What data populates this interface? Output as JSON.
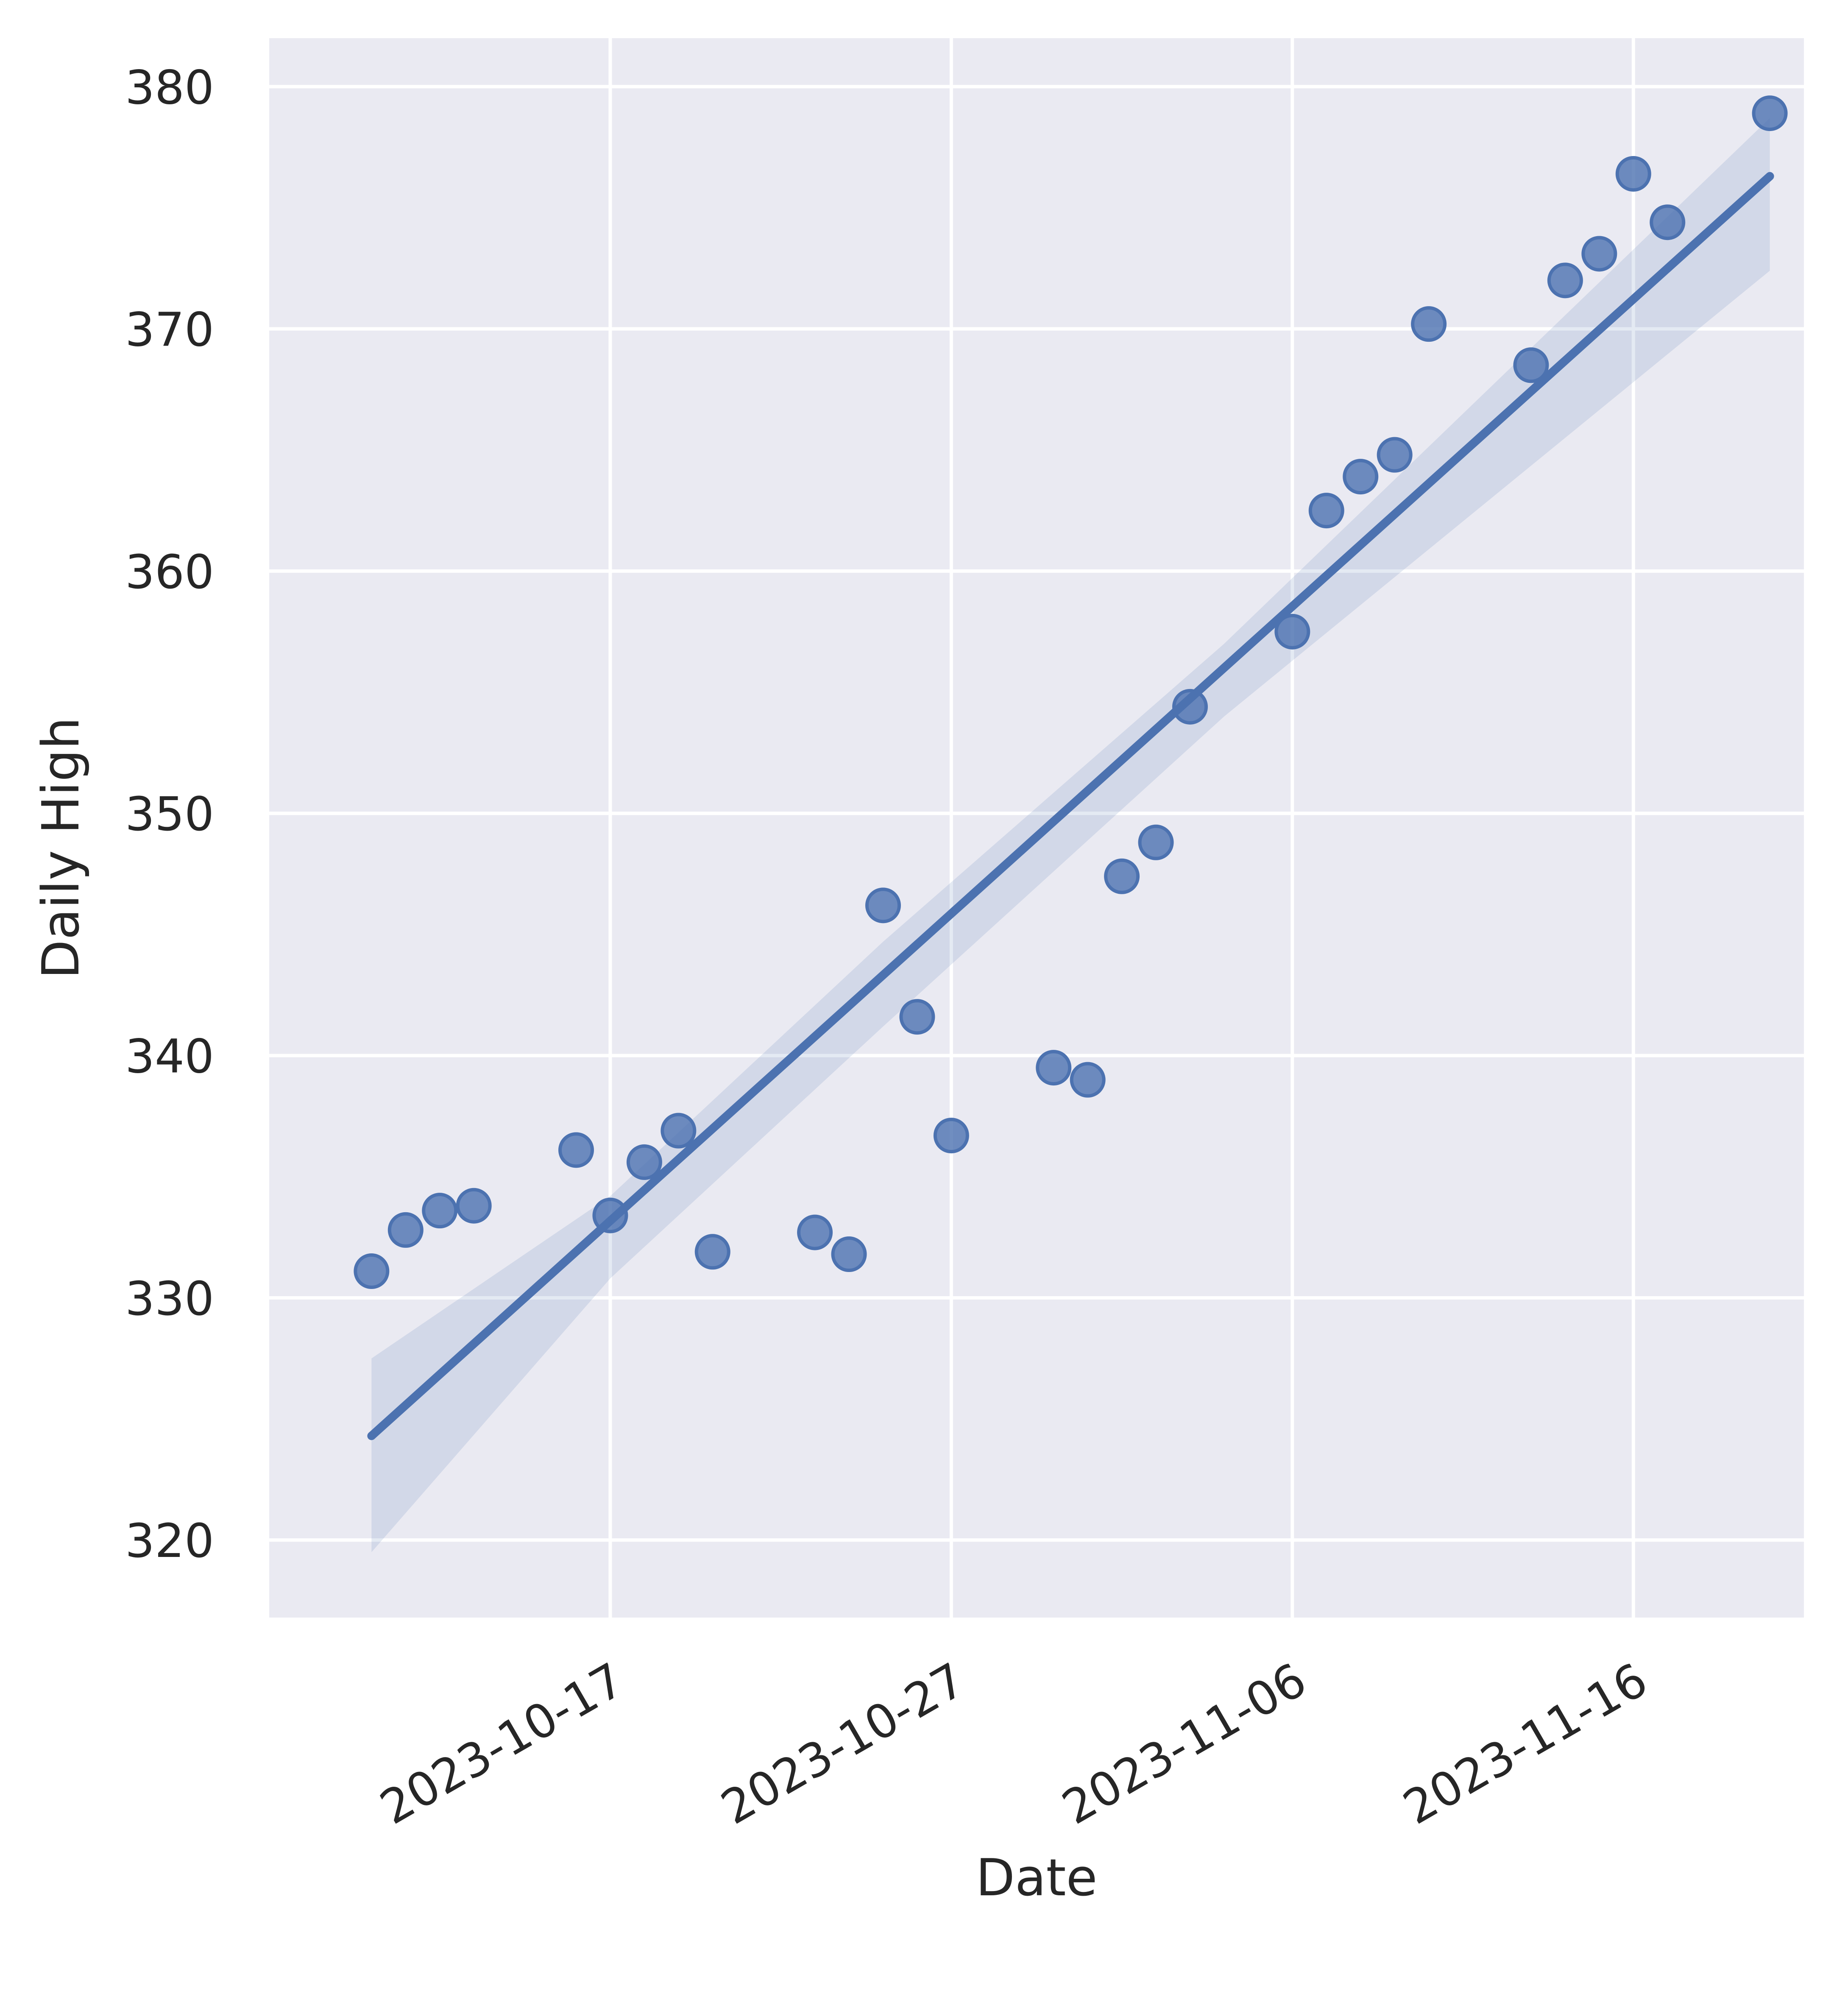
{
  "chart_data": {
    "type": "scatter",
    "xlabel": "Date",
    "ylabel": "Daily High",
    "x_type": "date",
    "xlim": [
      "2023-10-07",
      "2023-11-21"
    ],
    "ylim": [
      316.8,
      382.0
    ],
    "x_ticks": [
      "2023-10-17",
      "2023-10-27",
      "2023-11-06",
      "2023-11-16"
    ],
    "y_ticks": [
      320,
      330,
      340,
      350,
      360,
      370,
      380
    ],
    "grid": true,
    "legend": "none",
    "colors": {
      "background": "#eaeaf2",
      "grid": "#ffffff",
      "point": "#4c72b0",
      "line": "#4c72b0",
      "band": "#4c72b0"
    },
    "points": [
      {
        "x": "2023-10-10",
        "y": 331.1
      },
      {
        "x": "2023-10-11",
        "y": 332.8
      },
      {
        "x": "2023-10-12",
        "y": 333.6
      },
      {
        "x": "2023-10-13",
        "y": 333.8
      },
      {
        "x": "2023-10-16",
        "y": 336.1
      },
      {
        "x": "2023-10-17",
        "y": 333.4
      },
      {
        "x": "2023-10-18",
        "y": 335.6
      },
      {
        "x": "2023-10-19",
        "y": 336.9
      },
      {
        "x": "2023-10-20",
        "y": 331.9
      },
      {
        "x": "2023-10-23",
        "y": 332.7
      },
      {
        "x": "2023-10-24",
        "y": 331.8
      },
      {
        "x": "2023-10-25",
        "y": 346.2
      },
      {
        "x": "2023-10-26",
        "y": 341.6
      },
      {
        "x": "2023-10-27",
        "y": 336.7
      },
      {
        "x": "2023-10-30",
        "y": 339.5
      },
      {
        "x": "2023-10-31",
        "y": 339.0
      },
      {
        "x": "2023-11-01",
        "y": 347.4
      },
      {
        "x": "2023-11-02",
        "y": 348.8
      },
      {
        "x": "2023-11-03",
        "y": 354.4
      },
      {
        "x": "2023-11-06",
        "y": 357.5
      },
      {
        "x": "2023-11-07",
        "y": 362.5
      },
      {
        "x": "2023-11-08",
        "y": 363.9
      },
      {
        "x": "2023-11-09",
        "y": 364.8
      },
      {
        "x": "2023-11-10",
        "y": 370.2
      },
      {
        "x": "2023-11-13",
        "y": 368.5
      },
      {
        "x": "2023-11-14",
        "y": 372.0
      },
      {
        "x": "2023-11-15",
        "y": 373.1
      },
      {
        "x": "2023-11-16",
        "y": 376.4
      },
      {
        "x": "2023-11-17",
        "y": 374.4
      },
      {
        "x": "2023-11-20",
        "y": 378.9
      }
    ],
    "regression": {
      "x": [
        "2023-10-10",
        "2023-11-20"
      ],
      "y": [
        324.3,
        376.3
      ]
    },
    "confidence_band": {
      "x": [
        "2023-10-10",
        "2023-10-17",
        "2023-10-25",
        "2023-11-04",
        "2023-11-20"
      ],
      "upper": [
        327.5,
        334.2,
        344.7,
        357.0,
        378.7
      ],
      "lower": [
        319.5,
        330.8,
        341.2,
        354.0,
        372.4
      ]
    }
  }
}
